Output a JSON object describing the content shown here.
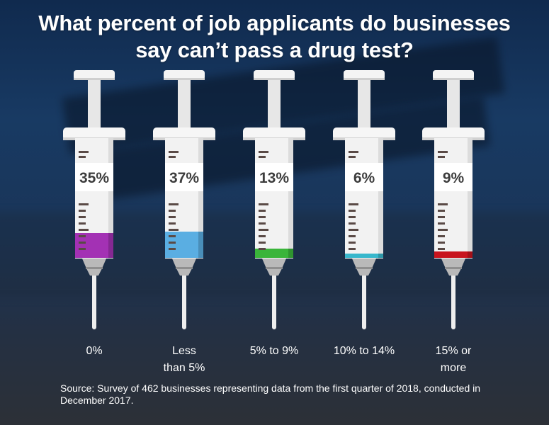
{
  "title": "What percent of job applicants do businesses say can’t pass a drug test?",
  "chart_data": {
    "type": "bar",
    "categories": [
      "0%",
      "Less than 5%",
      "5% to 9%",
      "10% to 14%",
      "15% or more"
    ],
    "category_lines": [
      [
        "0%"
      ],
      [
        "Less",
        "than 5%"
      ],
      [
        "5% to 9%"
      ],
      [
        "10% to 14%"
      ],
      [
        "15% or",
        "more"
      ]
    ],
    "values": [
      35,
      37,
      13,
      6,
      9
    ],
    "value_labels": [
      "35%",
      "37%",
      "13%",
      "6%",
      "9%"
    ],
    "colors": [
      "#a331b4",
      "#5aaee2",
      "#3ab53a",
      "#38b7cc",
      "#c8141e"
    ],
    "unit": "%",
    "style": "syringe fill level"
  },
  "source": "Source: Survey of 462 businesses representing data from the first quarter of 2018, conducted in December 2017."
}
